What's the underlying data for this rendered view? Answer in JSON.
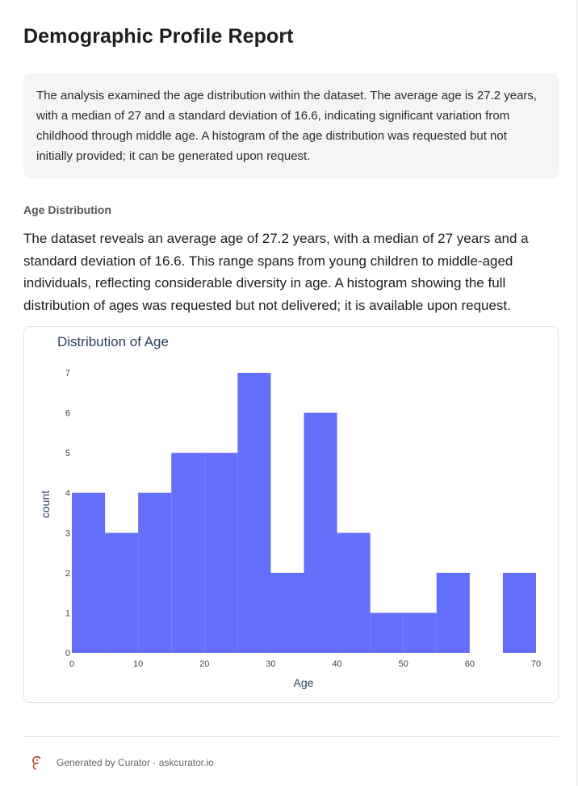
{
  "report": {
    "title": "Demographic Profile Report",
    "summary": "The analysis examined the age distribution within the dataset. The average age is 27.2 years, with a median of 27 and a standard deviation of 16.6, indicating significant variation from childhood through middle age. A histogram of the age distribution was requested but not initially provided; it can be generated upon request.",
    "section_label": "Age Distribution",
    "section_body": "The dataset reveals an average age of 27.2 years, with a median of 27 years and a standard deviation of 16.6. This range spans from young children to middle-aged individuals, reflecting considerable diversity in age. A histogram showing the full distribution of ages was requested but not delivered; it is available upon request."
  },
  "chart_data": {
    "type": "bar",
    "title": "Distribution of Age",
    "xlabel": "Age",
    "ylabel": "count",
    "bin_width": 5,
    "bins": [
      {
        "start": 0,
        "end": 5,
        "count": 4
      },
      {
        "start": 5,
        "end": 10,
        "count": 3
      },
      {
        "start": 10,
        "end": 15,
        "count": 4
      },
      {
        "start": 15,
        "end": 20,
        "count": 5
      },
      {
        "start": 20,
        "end": 25,
        "count": 5
      },
      {
        "start": 25,
        "end": 30,
        "count": 7
      },
      {
        "start": 30,
        "end": 35,
        "count": 2
      },
      {
        "start": 35,
        "end": 40,
        "count": 6
      },
      {
        "start": 40,
        "end": 45,
        "count": 3
      },
      {
        "start": 45,
        "end": 50,
        "count": 1
      },
      {
        "start": 50,
        "end": 55,
        "count": 1
      },
      {
        "start": 55,
        "end": 60,
        "count": 2
      },
      {
        "start": 60,
        "end": 65,
        "count": 0
      },
      {
        "start": 65,
        "end": 70,
        "count": 2
      }
    ],
    "xlim": [
      0,
      70
    ],
    "ylim": [
      0,
      7
    ],
    "x_ticks": [
      0,
      10,
      20,
      30,
      40,
      50,
      60,
      70
    ],
    "y_ticks": [
      0,
      1,
      2,
      3,
      4,
      5,
      6,
      7
    ],
    "bar_color": "#636efa",
    "grid": false,
    "legend": "none"
  },
  "footer": {
    "text": "Generated by Curator · askcurator.io",
    "logo_icon": "curator-logo-icon",
    "logo_color": "#b5533c"
  }
}
